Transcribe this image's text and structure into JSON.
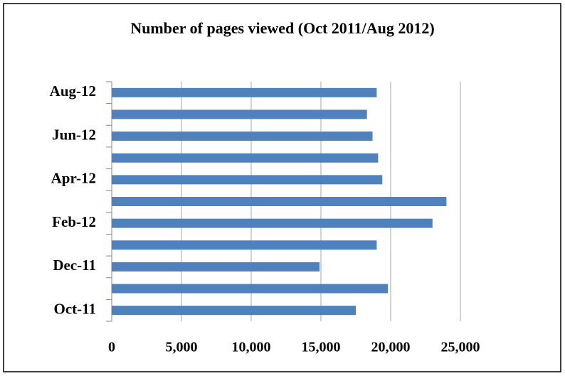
{
  "chart_data": {
    "type": "bar",
    "orientation": "horizontal",
    "title": "Number of pages viewed (Oct 2011/Aug 2012)",
    "categories": [
      "Oct-11",
      null,
      "Dec-11",
      null,
      "Feb-12",
      null,
      "Apr-12",
      null,
      "Jun-12",
      null,
      "Aug-12"
    ],
    "values": [
      17500,
      19800,
      14900,
      19000,
      23000,
      24000,
      19400,
      19100,
      18700,
      18300,
      19000
    ],
    "color": "#4f81bd",
    "xlim": [
      0,
      25000
    ],
    "xticks": [
      0,
      {
        "value": 5000,
        "label": "5,000"
      },
      {
        "value": 10000,
        "label": "10,000"
      },
      {
        "value": 15000,
        "label": "15,000"
      },
      {
        "value": 20000,
        "label": "20,000"
      },
      {
        "value": 25000,
        "label": "25,000"
      }
    ],
    "grid": true
  }
}
